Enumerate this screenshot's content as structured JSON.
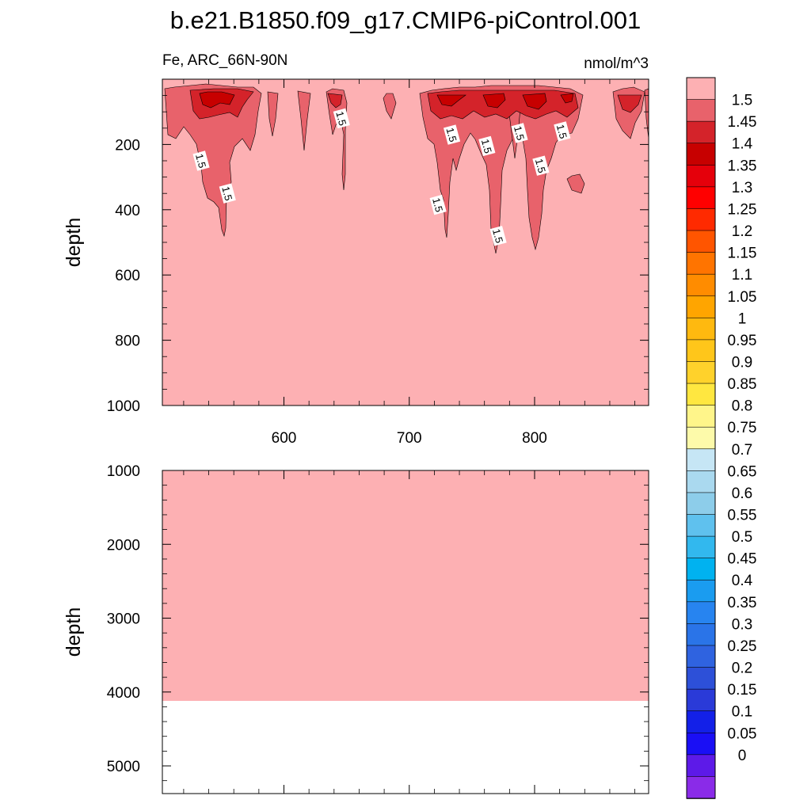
{
  "title": "b.e21.B1850.f09_g17.CMIP6-piControl.001",
  "chart_data": [
    {
      "type": "contour",
      "panel": "upper",
      "left_string": "Fe, ARC_66N-90N",
      "right_string": "nmol/m^3",
      "ylabel": "depth",
      "xlabel": "",
      "xlim": [
        503,
        891
      ],
      "ylim": [
        1000,
        0
      ],
      "xticks": [
        600,
        700,
        800
      ],
      "yticks": [
        200,
        400,
        600,
        800,
        1000
      ],
      "background_value": "1.5",
      "background_color": "#fdb0b3",
      "contour_levels_shown": [
        "1.5",
        "1.45",
        "1.4",
        "1.35"
      ],
      "contour_colors": {
        "1.5": "#fdb0b3",
        "1.45": "#e8626b",
        "1.4": "#d4232a",
        "1.35": "#c70000"
      },
      "features": [
        {
          "x": 550,
          "depth_max": 480,
          "value": "1.5"
        },
        {
          "x": 728,
          "depth_max": 490,
          "value": "1.5"
        },
        {
          "x": 768,
          "depth_max": 520,
          "value": "1.5"
        },
        {
          "x": 800,
          "depth_max": 500,
          "value": "1.5"
        }
      ],
      "contour_labels": [
        {
          "text": "1.5",
          "x": 646,
          "depth": 120
        },
        {
          "text": "1.5",
          "x": 534,
          "depth": 250
        },
        {
          "text": "1.5",
          "x": 555,
          "depth": 350
        },
        {
          "text": "1.5",
          "x": 734,
          "depth": 170
        },
        {
          "text": "1.5",
          "x": 762,
          "depth": 205
        },
        {
          "text": "1.5",
          "x": 788,
          "depth": 165
        },
        {
          "text": "1.5",
          "x": 822,
          "depth": 160
        },
        {
          "text": "1.5",
          "x": 805,
          "depth": 265
        },
        {
          "text": "1.5",
          "x": 723,
          "depth": 385
        },
        {
          "text": "1.5",
          "x": 771,
          "depth": 480
        }
      ]
    },
    {
      "type": "contour",
      "panel": "lower",
      "ylabel": "depth",
      "xlim": [
        503,
        891
      ],
      "ylim": [
        5375,
        1000
      ],
      "yticks": [
        1000,
        2000,
        3000,
        4000,
        5000
      ],
      "filled_value": "1.5",
      "filled_color": "#fdb0b3",
      "bottom_depth": 4120
    },
    {
      "type": "colorbar",
      "labels": [
        "1.5",
        "1.45",
        "1.4",
        "1.35",
        "1.3",
        "1.25",
        "1.2",
        "1.15",
        "1.1",
        "1.05",
        "1",
        "0.95",
        "0.9",
        "0.85",
        "0.8",
        "0.75",
        "0.7",
        "0.65",
        "0.6",
        "0.55",
        "0.5",
        "0.45",
        "0.4",
        "0.35",
        "0.3",
        "0.25",
        "0.2",
        "0.15",
        "0.1",
        "0.05",
        "0"
      ],
      "colors": [
        "#fdb0b3",
        "#e8626b",
        "#d4232a",
        "#c70000",
        "#e5000b",
        "#ff0000",
        "#ff2a00",
        "#ff5500",
        "#ff7400",
        "#ff8c00",
        "#ffa500",
        "#ffb90f",
        "#ffc61a",
        "#ffd22b",
        "#ffe740",
        "#fff58a",
        "#fdfaaa",
        "#c6e6f5",
        "#aad9ef",
        "#8dcdea",
        "#5fc1ee",
        "#32b8ee",
        "#00b2f0",
        "#1a9cf0",
        "#2784f0",
        "#2a74e8",
        "#2f63e0",
        "#2d50d8",
        "#2a3ad8",
        "#1320e8",
        "#1a0ff5",
        "#5d1ae8",
        "#8a2be8"
      ]
    }
  ]
}
